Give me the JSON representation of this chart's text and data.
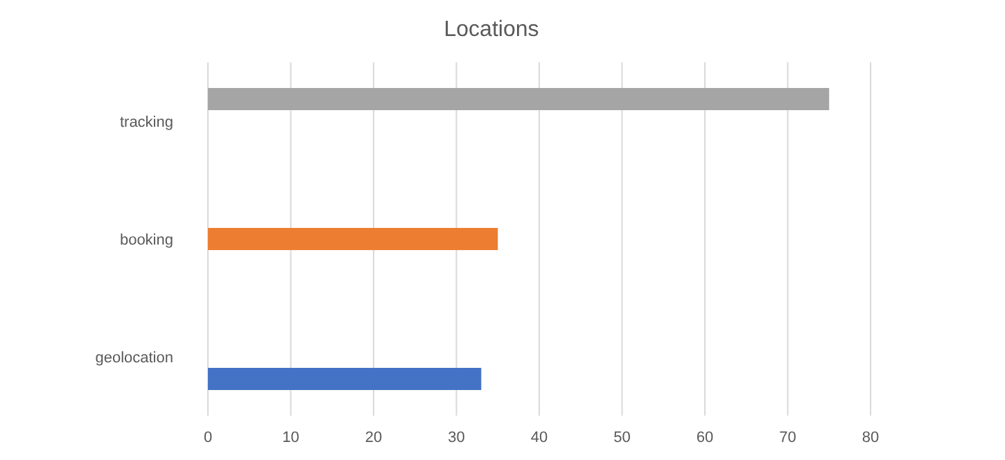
{
  "chart_data": {
    "type": "bar",
    "orientation": "horizontal",
    "title": "Locations",
    "categories": [
      "tracking",
      "booking",
      "geolocation"
    ],
    "series": [
      {
        "color": "#4472c4",
        "values": [
          null,
          null,
          33
        ]
      },
      {
        "color": "#ed7d31",
        "values": [
          null,
          35,
          null
        ]
      },
      {
        "color": "#a5a5a5",
        "values": [
          75,
          null,
          null
        ]
      }
    ],
    "xlim": [
      0,
      80
    ],
    "xticks": [
      0,
      10,
      20,
      30,
      40,
      50,
      60,
      70,
      80
    ],
    "grid": "x"
  }
}
